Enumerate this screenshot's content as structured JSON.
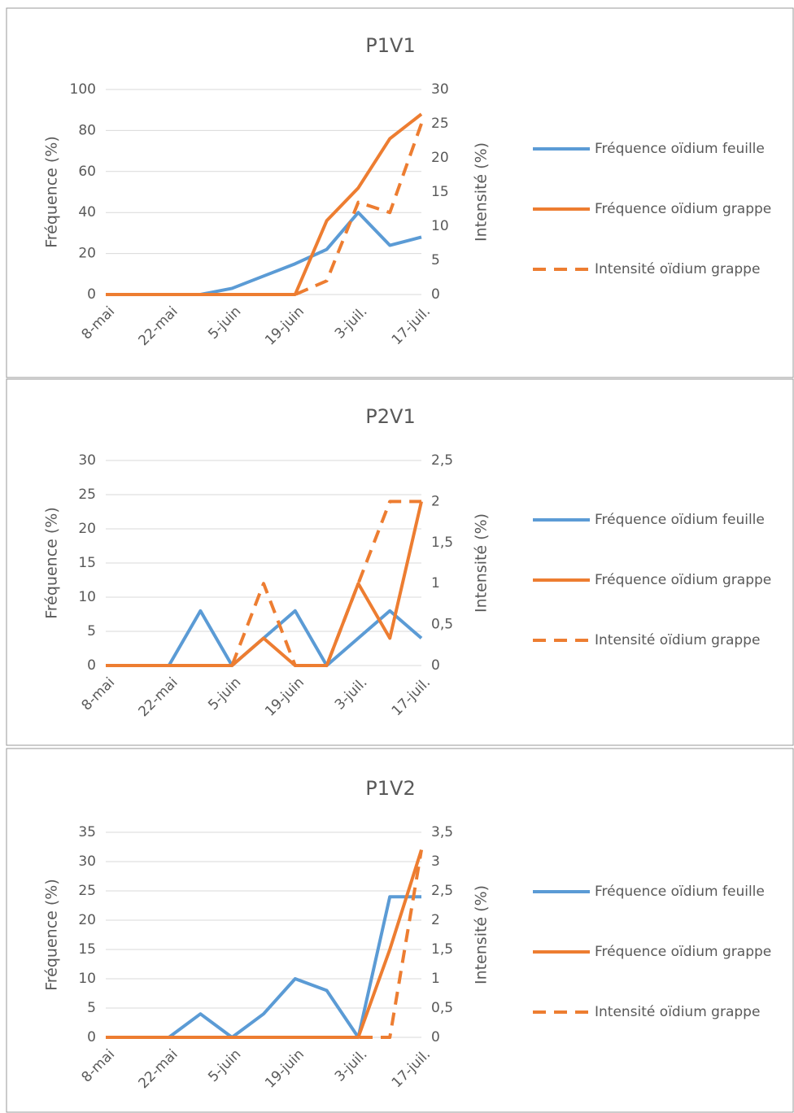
{
  "chart_data": [
    {
      "type": "line",
      "title": "P1V1",
      "y_label": "Fréquence (%)",
      "y2_label": "Intensité (%)",
      "categories": [
        "8-mai",
        null,
        "22-mai",
        null,
        "5-juin",
        null,
        "19-juin",
        null,
        "3-juil.",
        null,
        "17-juil."
      ],
      "ylim": [
        0,
        100
      ],
      "yticks": [
        0,
        20,
        40,
        60,
        80,
        100
      ],
      "y2lim": [
        0,
        30
      ],
      "y2ticks": [
        0,
        5,
        10,
        15,
        20,
        25,
        30
      ],
      "grid": true,
      "series": [
        {
          "name": "Fréquence oïdium feuille",
          "color": "#5b9bd5",
          "dashed": false,
          "values": [
            0,
            0,
            0,
            0,
            3,
            9,
            15,
            22,
            40,
            24,
            28
          ]
        },
        {
          "name": "Fréquence oïdium grappe",
          "color": "#ed7d31",
          "dashed": false,
          "values": [
            0,
            0,
            0,
            0,
            0,
            0,
            0,
            36,
            52,
            76,
            88
          ]
        },
        {
          "name": "Intensité oïdium grappe",
          "color": "#ed7d31",
          "dashed": true,
          "axis": "y2",
          "values": [
            0,
            0,
            0,
            0,
            0,
            0,
            0,
            2,
            13.5,
            12,
            25
          ]
        }
      ]
    },
    {
      "type": "line",
      "title": "P2V1",
      "y_label": "Fréquence (%)",
      "y2_label": "Intensité (%)",
      "categories": [
        "8-mai",
        null,
        "22-mai",
        null,
        "5-juin",
        null,
        "19-juin",
        null,
        "3-juil.",
        null,
        "17-juil."
      ],
      "ylim": [
        0,
        30
      ],
      "yticks": [
        0,
        5,
        10,
        15,
        20,
        25,
        30
      ],
      "y2lim": [
        0,
        2.5
      ],
      "y2ticks": [
        0,
        {
          "value": 0.5,
          "label": "0,5"
        },
        1,
        {
          "value": 1.5,
          "label": "1,5"
        },
        2,
        {
          "value": 2.5,
          "label": "2,5"
        }
      ],
      "grid": true,
      "series": [
        {
          "name": "Fréquence oïdium feuille",
          "color": "#5b9bd5",
          "dashed": false,
          "values": [
            0,
            0,
            0,
            8,
            0,
            4,
            8,
            0,
            4,
            8,
            4
          ]
        },
        {
          "name": "Fréquence oïdium grappe",
          "color": "#ed7d31",
          "dashed": false,
          "values": [
            0,
            0,
            0,
            0,
            0,
            4,
            0,
            0,
            12,
            4,
            24
          ]
        },
        {
          "name": "Intensité oïdium grappe",
          "color": "#ed7d31",
          "dashed": true,
          "axis": "y2",
          "values": [
            0,
            0,
            0,
            0,
            0,
            1,
            0,
            0,
            1,
            2,
            2
          ]
        }
      ]
    },
    {
      "type": "line",
      "title": "P1V2",
      "y_label": "Fréquence (%)",
      "y2_label": "Intensité (%)",
      "categories": [
        "8-mai",
        null,
        "22-mai",
        null,
        "5-juin",
        null,
        "19-juin",
        null,
        "3-juil.",
        null,
        "17-juil."
      ],
      "ylim": [
        0,
        35
      ],
      "yticks": [
        0,
        5,
        10,
        15,
        20,
        25,
        30,
        35
      ],
      "y2lim": [
        0,
        3.5
      ],
      "y2ticks": [
        0,
        {
          "value": 0.5,
          "label": "0,5"
        },
        1,
        {
          "value": 1.5,
          "label": "1,5"
        },
        2,
        {
          "value": 2.5,
          "label": "2,5"
        },
        3,
        {
          "value": 3.5,
          "label": "3,5"
        }
      ],
      "grid": true,
      "series": [
        {
          "name": "Fréquence oïdium feuille",
          "color": "#5b9bd5",
          "dashed": false,
          "values": [
            0,
            0,
            0,
            4,
            0,
            4,
            10,
            8,
            0,
            24,
            24
          ]
        },
        {
          "name": "Fréquence oïdium grappe",
          "color": "#ed7d31",
          "dashed": false,
          "values": [
            0,
            0,
            0,
            0,
            0,
            0,
            0,
            0,
            0,
            15,
            32
          ]
        },
        {
          "name": "Intensité oïdium grappe",
          "color": "#ed7d31",
          "dashed": true,
          "axis": "y2",
          "values": [
            0,
            0,
            0,
            0,
            0,
            0,
            0,
            0,
            0,
            0,
            3.2
          ]
        }
      ]
    }
  ]
}
